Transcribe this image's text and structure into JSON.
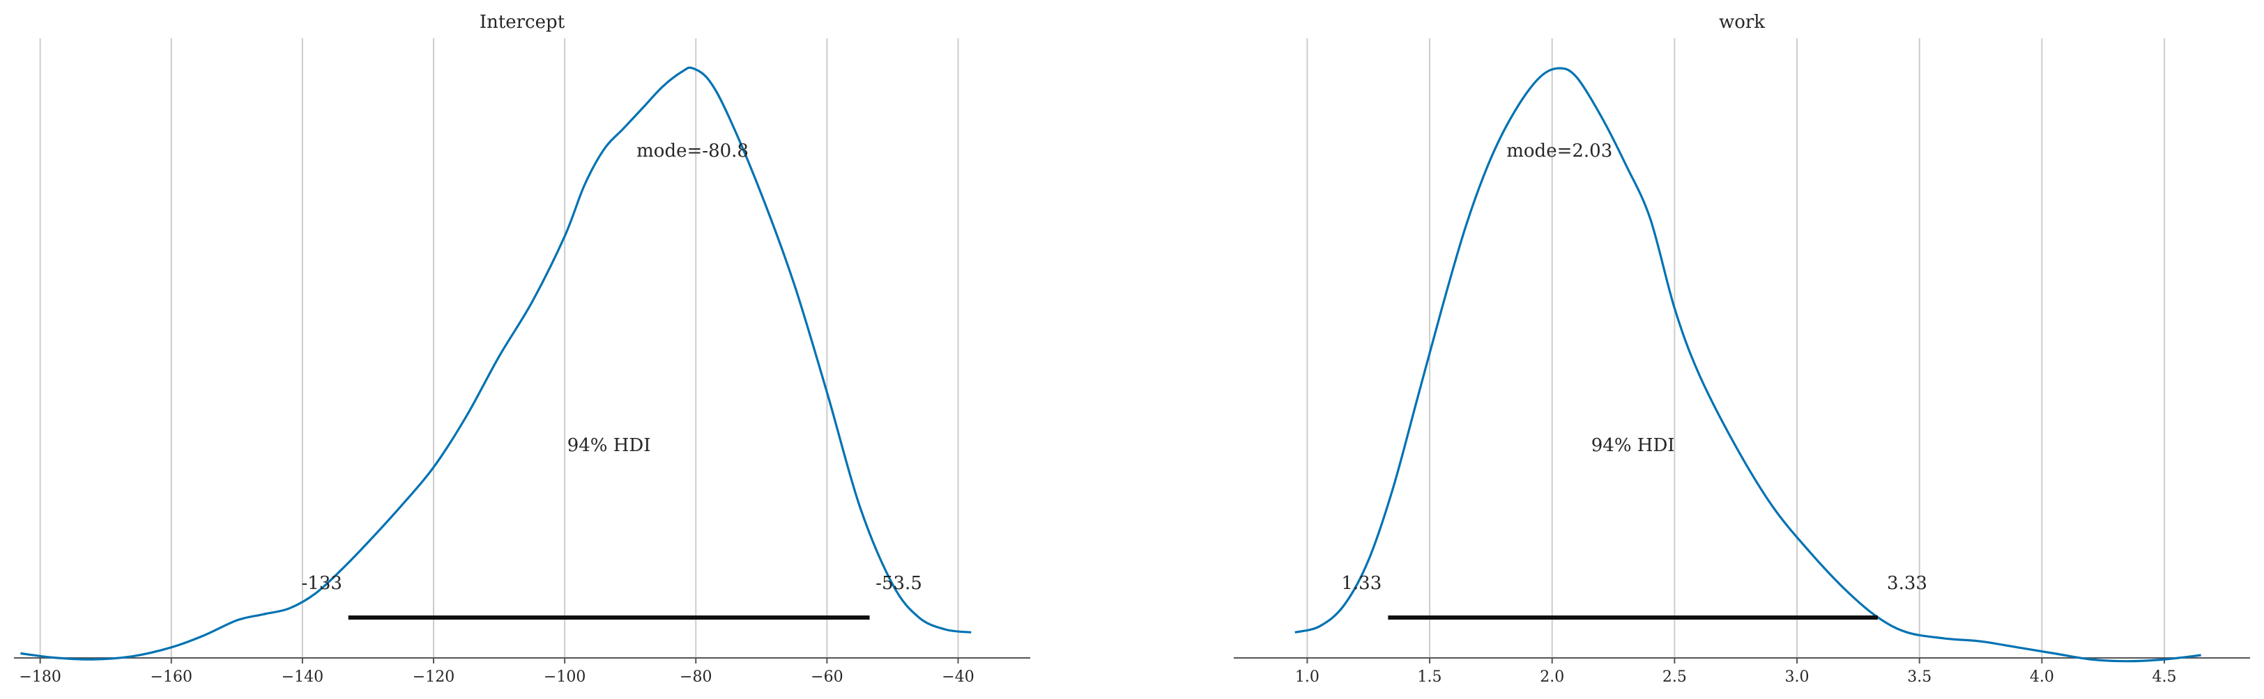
{
  "chart_data": [
    {
      "type": "line",
      "kind": "posterior-density",
      "title": "Intercept",
      "xlim": [
        -184,
        -29
      ],
      "xticks": [
        -180,
        -160,
        -140,
        -120,
        -100,
        -80,
        -60,
        -40
      ],
      "tick_labels": [
        "−180",
        "−160",
        "−140",
        "−120",
        "−100",
        "−80",
        "−60",
        "−40"
      ],
      "grid": "vertical",
      "color": "#0072B2",
      "mode_label": "mode=-80.8",
      "hdi_label": "94% HDI",
      "hdi": [
        -133,
        -53.5
      ],
      "hdi_low_label": "-133",
      "hdi_high_label": "-53.5",
      "density": [
        [
          -183.0,
          0.025
        ],
        [
          -178.0,
          0.018
        ],
        [
          -172.0,
          0.015
        ],
        [
          -166.0,
          0.02
        ],
        [
          -160.0,
          0.035
        ],
        [
          -155.0,
          0.055
        ],
        [
          -150.0,
          0.08
        ],
        [
          -146.0,
          0.09
        ],
        [
          -142.0,
          0.1
        ],
        [
          -138.0,
          0.125
        ],
        [
          -134.0,
          0.165
        ],
        [
          -130.0,
          0.21
        ],
        [
          -125.0,
          0.27
        ],
        [
          -120.0,
          0.335
        ],
        [
          -115.0,
          0.42
        ],
        [
          -110.0,
          0.52
        ],
        [
          -105.0,
          0.61
        ],
        [
          -100.0,
          0.72
        ],
        [
          -97.0,
          0.805
        ],
        [
          -94.0,
          0.865
        ],
        [
          -91.0,
          0.9
        ],
        [
          -88.0,
          0.935
        ],
        [
          -85.0,
          0.97
        ],
        [
          -82.0,
          0.995
        ],
        [
          -80.5,
          1.0
        ],
        [
          -78.0,
          0.98
        ],
        [
          -75.0,
          0.92
        ],
        [
          -70.0,
          0.79
        ],
        [
          -65.0,
          0.64
        ],
        [
          -60.0,
          0.46
        ],
        [
          -55.0,
          0.27
        ],
        [
          -50.0,
          0.14
        ],
        [
          -46.0,
          0.085
        ],
        [
          -42.0,
          0.065
        ],
        [
          -38.0,
          0.06
        ]
      ]
    },
    {
      "type": "line",
      "kind": "posterior-density",
      "title": "work",
      "xlim": [
        0.7,
        4.85
      ],
      "xticks": [
        1.0,
        1.5,
        2.0,
        2.5,
        3.0,
        3.5,
        4.0,
        4.5
      ],
      "tick_labels": [
        "1.0",
        "1.5",
        "2.0",
        "2.5",
        "3.0",
        "3.5",
        "4.0",
        "4.5"
      ],
      "grid": "vertical",
      "color": "#0072B2",
      "mode_label": "mode=2.03",
      "hdi_label": "94% HDI",
      "hdi": [
        1.33,
        3.33
      ],
      "hdi_low_label": "1.33",
      "hdi_high_label": "3.33",
      "density": [
        [
          0.95,
          0.06
        ],
        [
          1.05,
          0.07
        ],
        [
          1.15,
          0.105
        ],
        [
          1.25,
          0.18
        ],
        [
          1.35,
          0.3
        ],
        [
          1.45,
          0.45
        ],
        [
          1.55,
          0.6
        ],
        [
          1.65,
          0.74
        ],
        [
          1.75,
          0.85
        ],
        [
          1.85,
          0.93
        ],
        [
          1.95,
          0.985
        ],
        [
          2.03,
          1.0
        ],
        [
          2.1,
          0.985
        ],
        [
          2.2,
          0.92
        ],
        [
          2.3,
          0.84
        ],
        [
          2.4,
          0.75
        ],
        [
          2.5,
          0.6
        ],
        [
          2.6,
          0.49
        ],
        [
          2.75,
          0.37
        ],
        [
          2.9,
          0.27
        ],
        [
          3.05,
          0.195
        ],
        [
          3.2,
          0.13
        ],
        [
          3.33,
          0.085
        ],
        [
          3.45,
          0.06
        ],
        [
          3.6,
          0.05
        ],
        [
          3.75,
          0.045
        ],
        [
          3.9,
          0.035
        ],
        [
          4.05,
          0.025
        ],
        [
          4.2,
          0.015
        ],
        [
          4.35,
          0.012
        ],
        [
          4.5,
          0.015
        ],
        [
          4.65,
          0.022
        ]
      ]
    }
  ]
}
